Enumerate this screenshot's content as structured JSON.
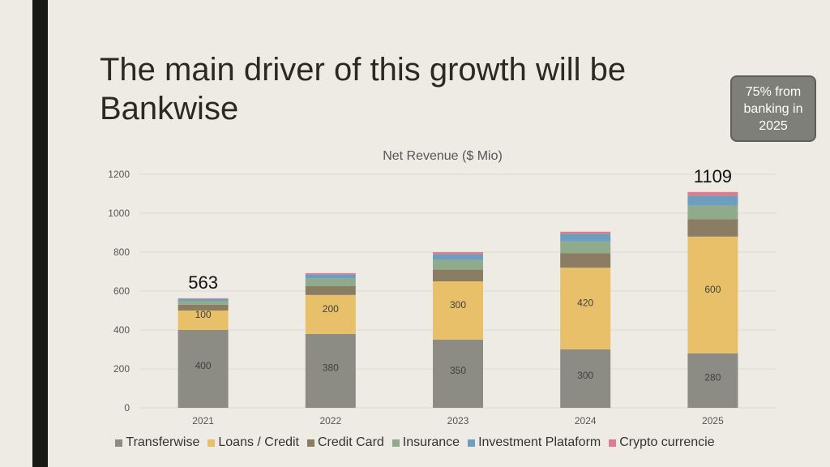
{
  "slide": {
    "title": "The main driver of this growth will be Bankwise",
    "callout": "75% from banking in 2025"
  },
  "chart_data": {
    "type": "bar",
    "stacked": true,
    "title": "Net Revenue ($ Mio)",
    "categories": [
      "2021",
      "2022",
      "2023",
      "2024",
      "2025"
    ],
    "ylim": [
      0,
      1200
    ],
    "yticks": [
      0,
      200,
      400,
      600,
      800,
      1000,
      1200
    ],
    "grid": true,
    "legend": "bottom",
    "series": [
      {
        "name": "Transferwise",
        "color": "#8c8c85",
        "values": [
          400,
          380,
          350,
          300,
          280
        ],
        "labels": [
          "400",
          "380",
          "350",
          "300",
          "280"
        ]
      },
      {
        "name": "Loans / Credit",
        "color": "#e8c06a",
        "values": [
          100,
          200,
          300,
          420,
          600
        ],
        "labels": [
          "100",
          "200",
          "300",
          "420",
          "600"
        ]
      },
      {
        "name": "Credit Card",
        "color": "#8b7c64",
        "values": [
          30,
          45,
          60,
          75,
          90
        ]
      },
      {
        "name": "Insurance",
        "color": "#8fab8c",
        "values": [
          20,
          40,
          50,
          60,
          70
        ]
      },
      {
        "name": "Investment Plataform",
        "color": "#6d9ec0",
        "values": [
          10,
          20,
          30,
          40,
          50
        ]
      },
      {
        "name": "Crypto currencie",
        "color": "#e07a8c",
        "values": [
          3,
          7,
          10,
          10,
          19
        ]
      }
    ],
    "annotations": [
      {
        "category": "2021",
        "text": "563"
      },
      {
        "category": "2025",
        "text": "1109"
      }
    ]
  }
}
